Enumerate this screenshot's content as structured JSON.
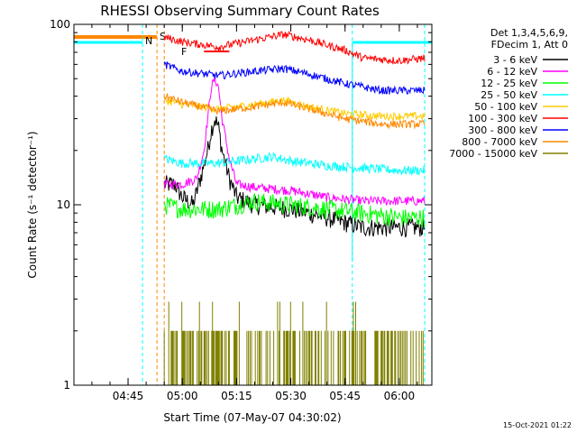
{
  "chart_data": {
    "type": "line",
    "title": "RHESSI Observing Summary Count Rates",
    "xlabel": "Start Time (07-May-07 04:30:02)",
    "ylabel": "Count Rate (s⁻¹ detector⁻¹)",
    "x_ticks": [
      "04:45",
      "05:00",
      "05:15",
      "05:30",
      "05:45",
      "06:00"
    ],
    "x_range": [
      "04:30:02",
      "06:09"
    ],
    "y_scale": "log",
    "ylim": [
      1,
      100
    ],
    "y_ticks": [
      "1",
      "10",
      "100"
    ],
    "grid": false,
    "legend_position": "right",
    "legend_header": [
      "Det 1,3,4,5,6,9,",
      "FDecim 1, Att 0"
    ],
    "timestamp": "15-Oct-2021 01:22",
    "flag_labels": {
      "saa": "S",
      "night": "N",
      "flare": "F"
    },
    "series": [
      {
        "name": "3 - 6 keV",
        "color": "#000000",
        "points": [
          [
            "04:55",
            13
          ],
          [
            "04:58",
            13
          ],
          [
            "05:00",
            11
          ],
          [
            "05:03",
            10
          ],
          [
            "05:05",
            14
          ],
          [
            "05:07",
            20
          ],
          [
            "05:08",
            26
          ],
          [
            "05:09",
            30
          ],
          [
            "05:10",
            27
          ],
          [
            "05:11",
            20
          ],
          [
            "05:13",
            14
          ],
          [
            "05:15",
            11
          ],
          [
            "05:20",
            10
          ],
          [
            "05:30",
            9.5
          ],
          [
            "05:40",
            8.5
          ],
          [
            "05:50",
            7.5
          ],
          [
            "06:00",
            7.5
          ],
          [
            "06:07",
            7.5
          ]
        ]
      },
      {
        "name": "6 - 12 keV",
        "color": "#ff00ff",
        "points": [
          [
            "04:55",
            13
          ],
          [
            "05:00",
            13
          ],
          [
            "05:04",
            14
          ],
          [
            "05:06",
            20
          ],
          [
            "05:07",
            30
          ],
          [
            "05:08",
            45
          ],
          [
            "05:09",
            50
          ],
          [
            "05:10",
            45
          ],
          [
            "05:11",
            30
          ],
          [
            "05:13",
            18
          ],
          [
            "05:15",
            13
          ],
          [
            "05:20",
            12.5
          ],
          [
            "05:30",
            12
          ],
          [
            "05:40",
            11
          ],
          [
            "05:50",
            10.5
          ],
          [
            "06:00",
            10.5
          ],
          [
            "06:07",
            10.5
          ]
        ]
      },
      {
        "name": "12 - 25 keV",
        "color": "#00ff00",
        "points": [
          [
            "04:55",
            10
          ],
          [
            "05:00",
            9.5
          ],
          [
            "05:10",
            9.5
          ],
          [
            "05:20",
            10.5
          ],
          [
            "05:30",
            10
          ],
          [
            "05:40",
            9.5
          ],
          [
            "05:50",
            9
          ],
          [
            "06:00",
            8.5
          ],
          [
            "06:07",
            8.5
          ]
        ]
      },
      {
        "name": "25 - 50 keV",
        "color": "#00ffff",
        "points": [
          [
            "04:55",
            18
          ],
          [
            "05:00",
            17
          ],
          [
            "05:10",
            17
          ],
          [
            "05:20",
            18
          ],
          [
            "05:25",
            18.5
          ],
          [
            "05:30",
            17.5
          ],
          [
            "05:40",
            16.5
          ],
          [
            "05:50",
            16
          ],
          [
            "06:00",
            15.5
          ],
          [
            "06:07",
            15.5
          ]
        ]
      },
      {
        "name": "50 - 100 keV",
        "color": "#ffcc00",
        "points": [
          [
            "04:55",
            38
          ],
          [
            "05:00",
            36
          ],
          [
            "05:10",
            34
          ],
          [
            "05:20",
            36
          ],
          [
            "05:28",
            38
          ],
          [
            "05:35",
            35
          ],
          [
            "05:45",
            32
          ],
          [
            "05:55",
            31
          ],
          [
            "06:07",
            31
          ]
        ]
      },
      {
        "name": "100 - 300 keV",
        "color": "#ff0000",
        "points": [
          [
            "04:55",
            85
          ],
          [
            "05:00",
            80
          ],
          [
            "05:10",
            75
          ],
          [
            "05:20",
            82
          ],
          [
            "05:28",
            88
          ],
          [
            "05:35",
            82
          ],
          [
            "05:45",
            72
          ],
          [
            "05:50",
            65
          ],
          [
            "06:00",
            63
          ],
          [
            "06:07",
            65
          ]
        ]
      },
      {
        "name": "300 - 800 keV",
        "color": "#0000ff",
        "points": [
          [
            "04:55",
            60
          ],
          [
            "05:00",
            55
          ],
          [
            "05:10",
            52
          ],
          [
            "05:20",
            55
          ],
          [
            "05:28",
            57
          ],
          [
            "05:35",
            53
          ],
          [
            "05:45",
            47
          ],
          [
            "05:55",
            43
          ],
          [
            "06:07",
            43
          ]
        ]
      },
      {
        "name": "800 - 7000 keV",
        "color": "#ff8800",
        "points": [
          [
            "04:55",
            40
          ],
          [
            "05:00",
            37
          ],
          [
            "05:10",
            33
          ],
          [
            "05:20",
            35
          ],
          [
            "05:28",
            37
          ],
          [
            "05:35",
            34
          ],
          [
            "05:45",
            30
          ],
          [
            "05:55",
            28
          ],
          [
            "06:07",
            28
          ]
        ]
      },
      {
        "name": "7000 - 15000 keV",
        "color": "#808000",
        "points": [
          [
            "04:55",
            1.4
          ],
          [
            "05:00",
            1.4
          ],
          [
            "05:10",
            1.35
          ],
          [
            "05:20",
            1.5
          ],
          [
            "05:30",
            1.4
          ],
          [
            "05:40",
            1.3
          ],
          [
            "05:50",
            1.35
          ],
          [
            "06:00",
            1.35
          ],
          [
            "06:07",
            1.35
          ]
        ]
      }
    ]
  }
}
